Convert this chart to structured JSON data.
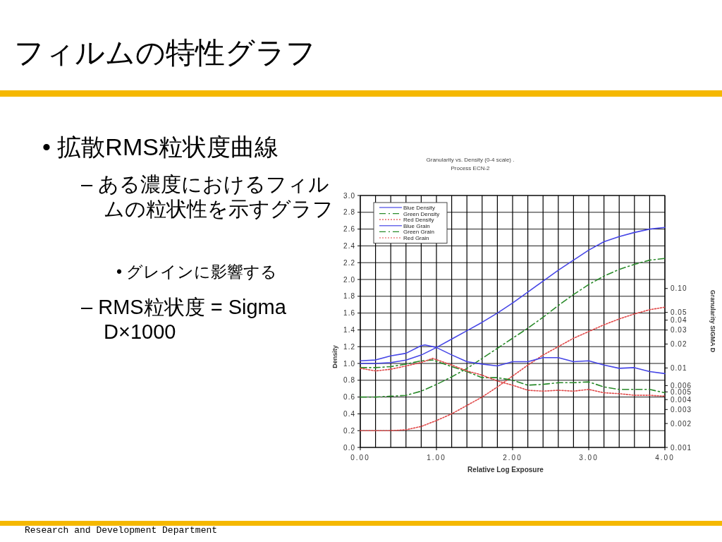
{
  "chart_data": {
    "type": "line",
    "title": "Granularity vs. Density (0-4 scale) .",
    "subtitle": "Process ECN-2",
    "xlabel": "Relative Log Exposure",
    "ylabel": "Density",
    "y2label": "Granularity SIGMA D",
    "annotations": [
      "フィルムの特性グラフ",
      "• 拡散RMS粒状度曲線",
      "– ある濃度におけるフィルムの粒状性を示すグラフ",
      "• グレインに影響する",
      "– RMS粒状度 = Sigma D×1000",
      "Research and Development Department"
    ],
    "x": [
      0,
      0.2,
      0.4,
      0.6,
      0.8,
      1.0,
      1.2,
      1.4,
      1.6,
      1.8,
      2.0,
      2.2,
      2.4,
      2.6,
      2.8,
      3.0,
      3.2,
      3.4,
      3.6,
      3.8,
      4.0
    ],
    "xlim": [
      0,
      4
    ],
    "xticks": [
      {
        "value": 0,
        "label": "0.00"
      },
      {
        "value": 1,
        "label": "1.00"
      },
      {
        "value": 2,
        "label": "2.00"
      },
      {
        "value": 3,
        "label": "3.00"
      },
      {
        "value": 4,
        "label": "4.00"
      }
    ],
    "ylim": [
      0,
      3
    ],
    "yticks": [
      {
        "value": 0,
        "label": "0.0"
      },
      0.2,
      0.4,
      0.6,
      0.8,
      {
        "value": 1,
        "label": "1.0"
      },
      1.2,
      1.4,
      1.6,
      1.8,
      {
        "value": 2,
        "label": "2.0"
      },
      2.2,
      2.4,
      2.6,
      2.8,
      {
        "value": 3,
        "label": "3.0"
      }
    ],
    "y2lim": [
      0.001,
      1.48
    ],
    "y2ticks": [
      0.001,
      0.002,
      0.003,
      0.004,
      0.005,
      0.006,
      0.01,
      0.02,
      0.03,
      0.04,
      0.05,
      {
        "value": 0.1,
        "label": "0.10"
      }
    ],
    "log": "y2",
    "grid": true,
    "legend": "top left",
    "series": [
      {
        "name": "Blue Density",
        "color": "#4646e6",
        "line_style": "solid",
        "values": [
          1.0,
          1.0,
          1.01,
          1.04,
          1.1,
          1.19,
          1.29,
          1.39,
          1.49,
          1.6,
          1.72,
          1.85,
          1.98,
          2.11,
          2.23,
          2.35,
          2.45,
          2.51,
          2.56,
          2.6,
          2.62
        ]
      },
      {
        "name": "Green Density",
        "color": "#2a8a2a",
        "line_style": "dashed",
        "values": [
          0.6,
          0.6,
          0.61,
          0.62,
          0.67,
          0.75,
          0.84,
          0.94,
          1.06,
          1.18,
          1.3,
          1.42,
          1.55,
          1.69,
          1.82,
          1.94,
          2.04,
          2.12,
          2.18,
          2.23,
          2.25
        ]
      },
      {
        "name": "Red Density",
        "color": "#e04848",
        "line_style": "dotted",
        "values": [
          0.2,
          0.2,
          0.2,
          0.21,
          0.25,
          0.32,
          0.4,
          0.5,
          0.6,
          0.72,
          0.85,
          0.98,
          1.1,
          1.2,
          1.3,
          1.38,
          1.46,
          1.53,
          1.59,
          1.64,
          1.67
        ]
      },
      {
        "name": "Blue Grain",
        "color": "#4646e6",
        "line_style": "solid",
        "axis": "y2",
        "x": [
          0,
          0.2,
          0.4,
          0.6,
          0.8,
          0.85,
          1.0,
          1.2,
          1.4,
          1.6,
          1.8,
          2.0,
          2.2,
          2.4,
          2.6,
          2.8,
          3.0,
          3.2,
          3.4,
          3.6,
          3.8,
          4.0
        ],
        "values": [
          0.0123,
          0.0126,
          0.0142,
          0.0153,
          0.0191,
          0.0195,
          0.0181,
          0.0146,
          0.012,
          0.0112,
          0.0106,
          0.012,
          0.012,
          0.0135,
          0.0135,
          0.012,
          0.0123,
          0.0109,
          0.0099,
          0.0101,
          0.009,
          0.0085
        ]
      },
      {
        "name": "Green Grain",
        "color": "#2a8a2a",
        "line_style": "dashed",
        "axis": "y2",
        "x": [
          0,
          0.2,
          0.4,
          0.6,
          0.8,
          0.95,
          1.2,
          1.4,
          1.6,
          1.8,
          2.0,
          2.2,
          2.4,
          2.6,
          2.8,
          3.0,
          3.2,
          3.4,
          3.6,
          3.8,
          4.0
        ],
        "values": [
          0.0101,
          0.0101,
          0.0104,
          0.0112,
          0.0123,
          0.0126,
          0.0104,
          0.009,
          0.00755,
          0.00755,
          0.00702,
          0.00607,
          0.00622,
          0.00652,
          0.00652,
          0.00668,
          0.00577,
          0.00537,
          0.00537,
          0.00537,
          0.00487
        ]
      },
      {
        "name": "Red Grain",
        "color": "#e04848",
        "line_style": "dotted",
        "axis": "y2",
        "x": [
          0,
          0.2,
          0.4,
          0.6,
          0.8,
          0.95,
          1.2,
          1.4,
          1.6,
          1.8,
          2.0,
          2.2,
          2.4,
          2.6,
          2.8,
          3.0,
          3.2,
          3.4,
          3.6,
          3.8,
          4.0
        ],
        "values": [
          0.0099,
          0.00918,
          0.00963,
          0.0106,
          0.0117,
          0.0132,
          0.0109,
          0.00918,
          0.00813,
          0.00685,
          0.00607,
          0.00524,
          0.00511,
          0.00524,
          0.00511,
          0.00537,
          0.00487,
          0.00475,
          0.00453,
          0.00453,
          0.00442
        ]
      }
    ]
  }
}
